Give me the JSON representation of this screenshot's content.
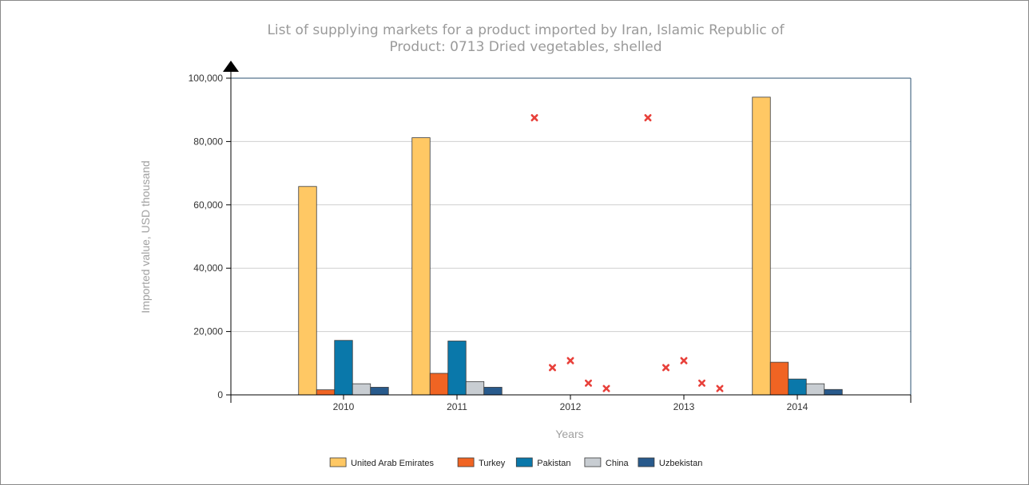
{
  "chart_data": {
    "type": "bar",
    "title": "List of supplying markets for a product imported by Iran, Islamic Republic of",
    "subtitle": "Product: 0713 Dried vegetables, shelled",
    "xlabel": "Years",
    "ylabel": "Imported value, USD thousand",
    "ylim": [
      0,
      100000
    ],
    "yticks": [
      0,
      20000,
      40000,
      60000,
      80000,
      100000
    ],
    "ytick_labels": [
      "0",
      "20,000",
      "40,000",
      "60,000",
      "80,000",
      "100,000"
    ],
    "categories": [
      "2010",
      "2011",
      "2012",
      "2013",
      "2014"
    ],
    "series": [
      {
        "name": "United Arab Emirates",
        "color": "#FFC864",
        "values": [
          65800,
          81200,
          null,
          null,
          94000
        ]
      },
      {
        "name": "Turkey",
        "color": "#F06423",
        "values": [
          1600,
          6800,
          null,
          null,
          10300
        ]
      },
      {
        "name": "Pakistan",
        "color": "#0A78AA",
        "values": [
          17200,
          17000,
          null,
          null,
          5000
        ]
      },
      {
        "name": "China",
        "color": "#C8CDD2",
        "values": [
          3500,
          4200,
          null,
          null,
          3500
        ]
      },
      {
        "name": "Uzbekistan",
        "color": "#285A8C",
        "values": [
          2400,
          2400,
          null,
          null,
          1700
        ]
      }
    ],
    "missing_markers": [
      {
        "category": "2012",
        "series": "United Arab Emirates",
        "y": 87500
      },
      {
        "category": "2012",
        "series": "Turkey",
        "y": 8600
      },
      {
        "category": "2012",
        "series": "Pakistan",
        "y": 10800
      },
      {
        "category": "2012",
        "series": "China",
        "y": 3700
      },
      {
        "category": "2012",
        "series": "Uzbekistan",
        "y": 2000
      },
      {
        "category": "2013",
        "series": "United Arab Emirates",
        "y": 87500
      },
      {
        "category": "2013",
        "series": "Turkey",
        "y": 8600
      },
      {
        "category": "2013",
        "series": "Pakistan",
        "y": 10800
      },
      {
        "category": "2013",
        "series": "China",
        "y": 3700
      },
      {
        "category": "2013",
        "series": "Uzbekistan",
        "y": 2000
      }
    ],
    "marker_color": "#E8403A",
    "axis_color": "#2B5070",
    "grid": true,
    "legend_position": "bottom-center"
  }
}
